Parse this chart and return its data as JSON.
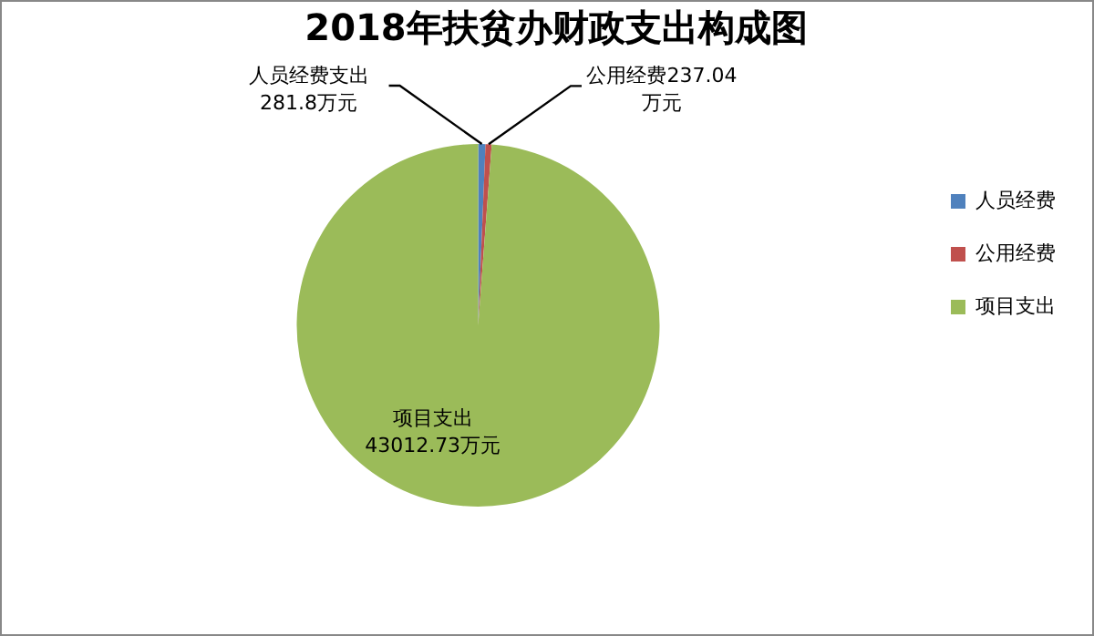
{
  "chart_data": {
    "type": "pie",
    "title": "2018年扶贫办财政支出构成图",
    "categories": [
      "人员经费",
      "公用经费",
      "项目支出"
    ],
    "values": [
      281.8,
      237.04,
      43012.73
    ],
    "colors": [
      "#4f81bd",
      "#c0504d",
      "#9bbb59"
    ],
    "value_labels": [
      "人员经费支出\n281.8万元",
      "公用经费237.04\n万元",
      "项目支出\n43012.73万元"
    ],
    "legend": "right"
  }
}
